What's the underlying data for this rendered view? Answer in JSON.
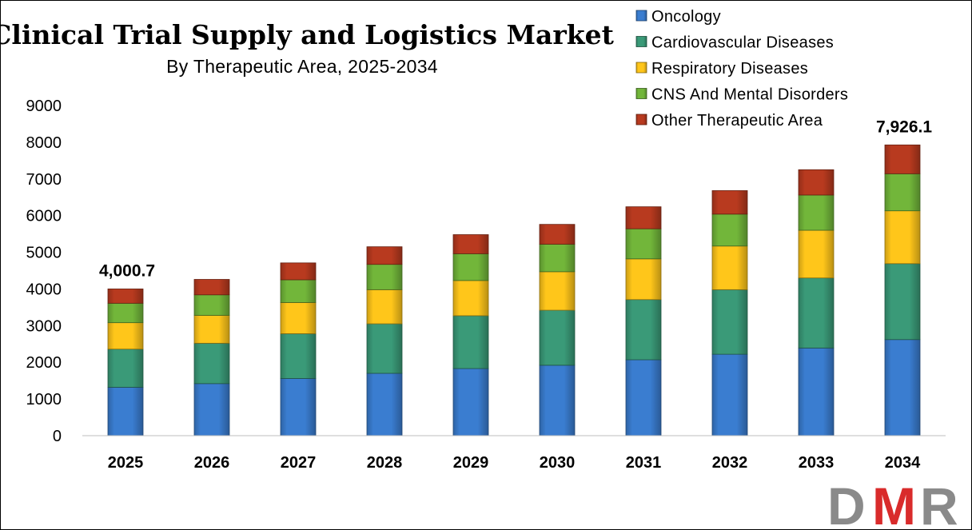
{
  "chart_data": {
    "type": "bar",
    "stacked": true,
    "title": "Clinical Trial Supply and Logistics Market",
    "subtitle": "By Therapeutic  Area, 2025-2034",
    "categories": [
      "2025",
      "2026",
      "2027",
      "2028",
      "2029",
      "2030",
      "2031",
      "2032",
      "2033",
      "2034"
    ],
    "ylim": [
      0,
      9000
    ],
    "yticks": [
      "0",
      "1000",
      "2000",
      "3000",
      "4000",
      "5000",
      "6000",
      "7000",
      "8000",
      "9000"
    ],
    "grid": false,
    "legend_position": "top-right",
    "series": [
      {
        "name": "Oncology",
        "color": "#3a7dd0",
        "values": [
          1320,
          1420,
          1560,
          1700,
          1830,
          1920,
          2070,
          2220,
          2390,
          2620
        ]
      },
      {
        "name": "Cardiovascular Diseases",
        "color": "#3a9a78",
        "values": [
          1040,
          1100,
          1220,
          1350,
          1440,
          1500,
          1640,
          1760,
          1910,
          2070
        ]
      },
      {
        "name": "Respiratory Diseases",
        "color": "#ffc61a",
        "values": [
          720,
          760,
          850,
          930,
          960,
          1050,
          1110,
          1190,
          1300,
          1440
        ]
      },
      {
        "name": "CNS And Mental Disorders",
        "color": "#72b63a",
        "values": [
          530,
          560,
          620,
          690,
          730,
          750,
          820,
          870,
          960,
          1010
        ]
      },
      {
        "name": "Other Therapeutic Area",
        "color": "#b83a1f",
        "values": [
          390,
          420,
          460,
          480,
          520,
          540,
          600,
          640,
          690,
          786.1
        ]
      }
    ],
    "annotations": [
      {
        "category": "2025",
        "text": "4,000.7"
      },
      {
        "category": "2034",
        "text": "7,926.1"
      }
    ]
  },
  "logo": {
    "text": "DMR",
    "colors": [
      "#8a8a8a",
      "#d92b2b",
      "#8a8a8a"
    ]
  }
}
